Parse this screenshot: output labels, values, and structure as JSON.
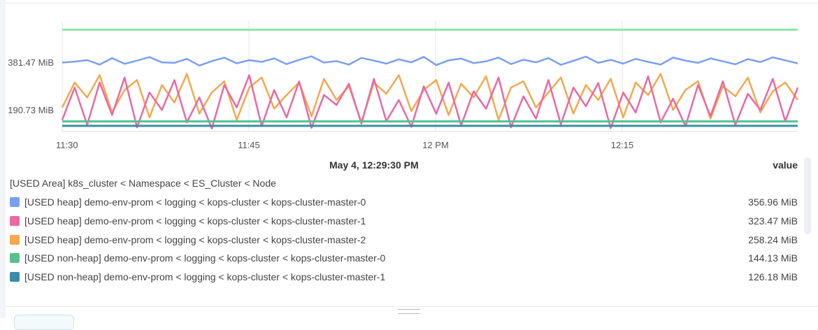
{
  "chart_data": {
    "type": "line",
    "x_start": "11:30",
    "x_step_minutes": 1,
    "x_ticks": [
      "11:30",
      "11:45",
      "12 PM",
      "12:15"
    ],
    "y_ticks": [
      "190.73 MiB",
      "381.47 MiB"
    ],
    "y_tick_values": [
      190.73,
      381.47
    ],
    "ylim": [
      100,
      530
    ],
    "grid": "vertical",
    "series": [
      {
        "color": "#8ee6a8",
        "values": [
          512
        ]
      },
      {
        "name": "[USED heap] demo-env-prom < logging < kops-cluster < kops-cluster-master-2",
        "color": "#f4a84f",
        "values": [
          200,
          300,
          240,
          330,
          180,
          270,
          310,
          160,
          290,
          220,
          335,
          175,
          260,
          305,
          150,
          280,
          320,
          195,
          250,
          300,
          165,
          315,
          230,
          285,
          140,
          300,
          255,
          330,
          185,
          270,
          310,
          170,
          295,
          240,
          325,
          150,
          280,
          305,
          200,
          260,
          320,
          175,
          290,
          230,
          315,
          160,
          300,
          250,
          335,
          190,
          270,
          305,
          155,
          285,
          245,
          320,
          180,
          265,
          300,
          230
        ]
      },
      {
        "name": "[USED heap] demo-env-prom < logging < kops-cluster < kops-cluster-master-1",
        "color": "#ec68a2",
        "values": [
          150,
          280,
          130,
          300,
          170,
          320,
          120,
          260,
          190,
          310,
          140,
          240,
          115,
          290,
          200,
          330,
          125,
          270,
          160,
          305,
          118,
          250,
          210,
          295,
          135,
          315,
          145,
          230,
          122,
          285,
          175,
          300,
          128,
          265,
          195,
          320,
          120,
          245,
          155,
          310,
          132,
          280,
          205,
          298,
          117,
          260,
          180,
          325,
          140,
          235,
          125,
          290,
          165,
          305,
          130,
          255,
          190,
          315,
          145,
          280
        ]
      },
      {
        "name": "[USED heap] demo-env-prom < logging < kops-cluster < kops-cluster-master-0",
        "color": "#7b9ff0",
        "values": [
          380,
          384,
          390,
          372,
          398,
          375,
          388,
          402,
          381,
          379,
          395,
          368,
          386,
          400,
          377,
          390,
          383,
          397,
          374,
          391,
          405,
          380,
          386,
          372,
          399,
          388,
          376,
          393,
          381,
          403,
          370,
          389,
          396,
          378,
          385,
          400,
          374,
          392,
          381,
          398,
          371,
          387,
          404,
          379,
          391,
          376,
          395,
          383,
          372,
          400,
          388,
          379,
          397,
          385,
          373,
          394,
          382,
          401,
          389,
          377
        ]
      },
      {
        "name": "[USED non-heap] demo-env-prom < logging < kops-cluster < kops-cluster-master-0",
        "color": "#58c08e",
        "values": [
          144.13
        ]
      },
      {
        "name": "[USED non-heap] demo-env-prom < logging < kops-cluster < kops-cluster-master-1",
        "color": "#3b8da6",
        "values": [
          126.18
        ]
      }
    ]
  },
  "legend": {
    "timestamp": "May 4, 12:29:30 PM",
    "value_header": "value",
    "group_label": "[USED Area] k8s_cluster < Namespace < ES_Cluster < Node",
    "rows": [
      {
        "label": "[USED heap] demo-env-prom < logging < kops-cluster < kops-cluster-master-0",
        "value": "356.96 MiB",
        "color": "#7b9ff0"
      },
      {
        "label": "[USED heap] demo-env-prom < logging < kops-cluster < kops-cluster-master-1",
        "value": "323.47 MiB",
        "color": "#ec68a2"
      },
      {
        "label": "[USED heap] demo-env-prom < logging < kops-cluster < kops-cluster-master-2",
        "value": "258.24 MiB",
        "color": "#f4a84f"
      },
      {
        "label": "[USED non-heap] demo-env-prom < logging < kops-cluster < kops-cluster-master-0",
        "value": "144.13 MiB",
        "color": "#58c08e"
      },
      {
        "label": "[USED non-heap] demo-env-prom < logging < kops-cluster < kops-cluster-master-1",
        "value": "126.18 MiB",
        "color": "#3b8da6"
      }
    ]
  }
}
